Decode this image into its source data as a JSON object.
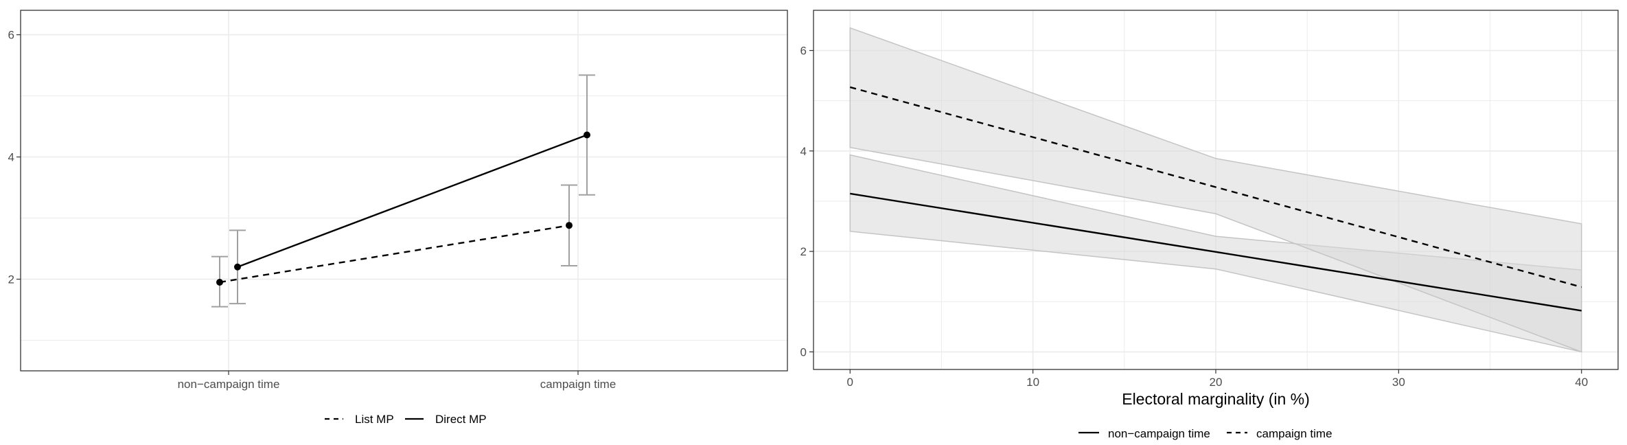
{
  "chart_data": [
    {
      "type": "line",
      "x_categories": [
        "non−campaign time",
        "campaign time"
      ],
      "ylim": [
        0.5,
        6.4
      ],
      "y_ticks": [
        2,
        4,
        6
      ],
      "grid": true,
      "legend_position": "bottom",
      "legend_entries": [
        "List MP",
        "Direct MP"
      ],
      "series": [
        {
          "name": "List MP",
          "linestyle": "dashed",
          "values": [
            1.95,
            2.88
          ],
          "ci_low": [
            1.55,
            2.22
          ],
          "ci_high": [
            2.37,
            3.54
          ]
        },
        {
          "name": "Direct MP",
          "linestyle": "solid",
          "values": [
            2.2,
            4.36
          ],
          "ci_low": [
            1.6,
            3.38
          ],
          "ci_high": [
            2.8,
            5.34
          ]
        }
      ],
      "colors": {
        "line": "#000000",
        "errorbar": "#a0a0a0",
        "grid": "#ebebeb",
        "panel_border": "#333333"
      }
    },
    {
      "type": "line",
      "xlabel": "Electoral marginality (in %)",
      "x_ticks": [
        0,
        10,
        20,
        30,
        40
      ],
      "y_ticks": [
        0,
        2,
        4,
        6
      ],
      "xlim": [
        -2,
        42
      ],
      "ylim": [
        -0.35,
        6.8
      ],
      "grid": true,
      "legend_position": "bottom",
      "legend_entries": [
        "non−campaign time",
        "campaign time"
      ],
      "series": [
        {
          "name": "non−campaign time",
          "linestyle": "solid",
          "x": [
            0,
            20,
            40
          ],
          "y": [
            3.15,
            1.99,
            0.82
          ],
          "ci_low": [
            2.4,
            1.65,
            0.0
          ],
          "ci_high": [
            3.92,
            2.3,
            1.63
          ]
        },
        {
          "name": "campaign time",
          "linestyle": "dashed",
          "x": [
            0,
            20,
            40
          ],
          "y": [
            5.27,
            3.28,
            1.29
          ],
          "ci_low": [
            4.07,
            2.75,
            0.0
          ],
          "ci_high": [
            6.45,
            3.85,
            2.55
          ]
        }
      ],
      "colors": {
        "ribbon": "#d9d9d9",
        "ribbon_border": "#c4c4c4",
        "line": "#000000",
        "grid": "#ebebeb"
      }
    }
  ]
}
